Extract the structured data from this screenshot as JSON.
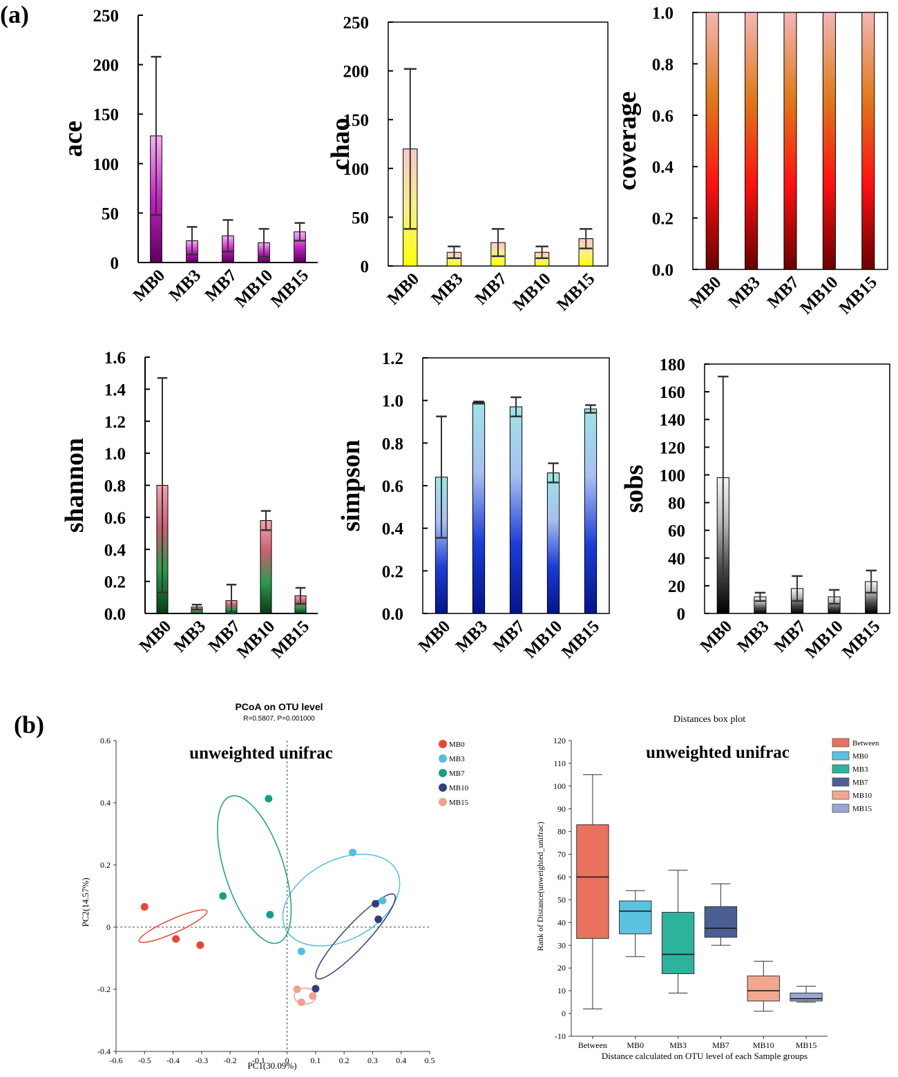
{
  "panel_labels": {
    "a": "(a)",
    "b": "(b)"
  },
  "chart_data": [
    {
      "type": "bar",
      "id": "ace",
      "ylabel": "ace",
      "categories": [
        "MB0",
        "MB3",
        "MB7",
        "MB10",
        "MB15"
      ],
      "values": [
        128,
        22,
        27,
        20,
        31
      ],
      "errors": [
        80,
        14,
        16,
        14,
        9
      ],
      "ylim": [
        0,
        250
      ],
      "yticks": [
        "0",
        "50",
        "100",
        "150",
        "200",
        "250"
      ],
      "gradient": [
        "#f4b3f4",
        "#c420c4",
        "#5a005a"
      ],
      "box": "open"
    },
    {
      "type": "bar",
      "id": "chao",
      "ylabel": "chao",
      "categories": [
        "MB0",
        "MB3",
        "MB7",
        "MB10",
        "MB15"
      ],
      "values": [
        120,
        14,
        24,
        14,
        28
      ],
      "errors": [
        82,
        6,
        14,
        6,
        10
      ],
      "ylim": [
        0,
        250
      ],
      "yticks": [
        "0",
        "50",
        "100",
        "150",
        "200",
        "250"
      ],
      "gradient": [
        "#f9c8c8",
        "#f7f08a",
        "#ffff00"
      ],
      "box": "closed"
    },
    {
      "type": "bar",
      "id": "coverage",
      "ylabel": "coverage",
      "categories": [
        "MB0",
        "MB3",
        "MB7",
        "MB10",
        "MB15"
      ],
      "values": [
        1.0,
        1.0,
        1.0,
        1.0,
        1.0
      ],
      "errors": [
        0,
        0,
        0,
        0,
        0
      ],
      "ylim": [
        0,
        1.0
      ],
      "yticks": [
        "0.0",
        "0.2",
        "0.4",
        "0.6",
        "0.8",
        "1.0"
      ],
      "gradient": [
        "#f4b6b6",
        "#e07a1a",
        "#ff1010",
        "#6a0000"
      ],
      "box": "closed"
    },
    {
      "type": "bar",
      "id": "shannon",
      "ylabel": "shannon",
      "categories": [
        "MB0",
        "MB3",
        "MB7",
        "MB10",
        "MB15"
      ],
      "values": [
        0.8,
        0.04,
        0.08,
        0.58,
        0.11
      ],
      "errors": [
        0.67,
        0.015,
        0.1,
        0.06,
        0.05
      ],
      "ylim": [
        0,
        1.6
      ],
      "yticks": [
        "0.0",
        "0.2",
        "0.4",
        "0.6",
        "0.8",
        "1.0",
        "1.2",
        "1.4",
        "1.6"
      ],
      "gradient": [
        "#f4a3b3",
        "#c86070",
        "#2a9a4a",
        "#0a3a12"
      ],
      "box": "open"
    },
    {
      "type": "bar",
      "id": "simpson",
      "ylabel": "simpson",
      "categories": [
        "MB0",
        "MB3",
        "MB7",
        "MB10",
        "MB15"
      ],
      "values": [
        0.64,
        0.99,
        0.97,
        0.66,
        0.96
      ],
      "errors": [
        0.285,
        0.005,
        0.045,
        0.045,
        0.018
      ],
      "ylim": [
        0,
        1.2
      ],
      "yticks": [
        "0.0",
        "0.2",
        "0.4",
        "0.6",
        "0.8",
        "1.0",
        "1.2"
      ],
      "gradient": [
        "#9de4e4",
        "#a8bff2",
        "#1a3cd8",
        "#04148a"
      ],
      "box": "closed"
    },
    {
      "type": "bar",
      "id": "sobs",
      "ylabel": "sobs",
      "categories": [
        "MB0",
        "MB3",
        "MB7",
        "MB10",
        "MB15"
      ],
      "values": [
        98,
        12,
        18,
        12,
        23
      ],
      "errors": [
        73,
        3,
        9,
        5,
        8
      ],
      "ylim": [
        0,
        180
      ],
      "yticks": [
        "0",
        "20",
        "40",
        "60",
        "80",
        "100",
        "120",
        "140",
        "160",
        "180"
      ],
      "gradient": [
        "#f4f4f4",
        "#b8b8b8",
        "#4a4a4a",
        "#000000"
      ],
      "box": "closed"
    },
    {
      "type": "scatter",
      "id": "pcoa",
      "title": "PCoA on OTU level",
      "subtitle": "R=0.5807, P=0.001000",
      "annotation": "unweighted unifrac",
      "xlabel": "PC1(30.09%)",
      "ylabel": "PC2(14.57%)",
      "xlim": [
        -0.6,
        0.5
      ],
      "ylim": [
        -0.4,
        0.6
      ],
      "xticks": [
        "-0.6",
        "-0.5",
        "-0.4",
        "-0.3",
        "-0.2",
        "-0.1",
        "0",
        "0.1",
        "0.2",
        "0.3",
        "0.4",
        "0.5"
      ],
      "yticks": [
        "-0.4",
        "-0.2",
        "0",
        "0.2",
        "0.4",
        "0.6"
      ],
      "series": [
        {
          "name": "MB0",
          "color": "#e8472f",
          "points": [
            [
              -0.5,
              0.065
            ],
            [
              -0.39,
              -0.038
            ],
            [
              -0.305,
              -0.058
            ]
          ]
        },
        {
          "name": "MB3",
          "color": "#4fc0e0",
          "points": [
            [
              0.23,
              0.24
            ],
            [
              0.335,
              0.085
            ],
            [
              0.05,
              -0.078
            ]
          ]
        },
        {
          "name": "MB7",
          "color": "#16a085",
          "points": [
            [
              -0.065,
              0.413
            ],
            [
              -0.225,
              0.1
            ],
            [
              -0.06,
              0.04
            ]
          ]
        },
        {
          "name": "MB10",
          "color": "#2e3f7c",
          "points": [
            [
              0.31,
              0.075
            ],
            [
              0.32,
              0.025
            ],
            [
              0.1,
              -0.198
            ]
          ]
        },
        {
          "name": "MB15",
          "color": "#f0a090",
          "points": [
            [
              0.035,
              -0.2
            ],
            [
              0.09,
              -0.222
            ],
            [
              0.05,
              -0.242
            ]
          ]
        }
      ],
      "ellipses": [
        {
          "series": "MB0",
          "cx": -0.4,
          "cy": 0.003,
          "rx": 0.13,
          "ry": 0.022,
          "angle": -24
        },
        {
          "series": "MB3",
          "cx": 0.19,
          "cy": 0.087,
          "rx": 0.22,
          "ry": 0.128,
          "angle": -28
        },
        {
          "series": "MB7",
          "cx": -0.115,
          "cy": 0.185,
          "rx": 0.27,
          "ry": 0.095,
          "angle": 72
        },
        {
          "series": "MB10",
          "cx": 0.24,
          "cy": -0.03,
          "rx": 0.2,
          "ry": 0.038,
          "angle": -47
        },
        {
          "series": "MB15",
          "cx": 0.063,
          "cy": -0.222,
          "rx": 0.038,
          "ry": 0.026,
          "angle": 0
        }
      ]
    },
    {
      "type": "box",
      "id": "distance-box",
      "title": "Distances box plot",
      "annotation": "unweighted unifrac",
      "xlabel": "Distance calculated on OTU level of each Sample groups",
      "ylabel": "Rank of Distance(unweighted_unifrac)",
      "ylim": [
        -10,
        120
      ],
      "yticks": [
        "-10",
        "0",
        "10",
        "20",
        "30",
        "40",
        "50",
        "60",
        "70",
        "80",
        "90",
        "100",
        "110",
        "120"
      ],
      "categories": [
        "Between",
        "MB0",
        "MB3",
        "MB7",
        "MB10",
        "MB15"
      ],
      "colors": [
        "#e8725e",
        "#5bc2e0",
        "#2bb39b",
        "#4a5f96",
        "#f2a88e",
        "#9aa6d2"
      ],
      "boxes": [
        {
          "min": 2,
          "q1": 33,
          "median": 60,
          "q3": 83,
          "max": 105
        },
        {
          "min": 25,
          "q1": 35,
          "median": 45,
          "q3": 49.5,
          "max": 54
        },
        {
          "min": 9,
          "q1": 17.5,
          "median": 26,
          "q3": 44.5,
          "max": 63
        },
        {
          "min": 30,
          "q1": 33.5,
          "median": 37.5,
          "q3": 47,
          "max": 57
        },
        {
          "min": 1,
          "q1": 5.5,
          "median": 10,
          "q3": 16.5,
          "max": 23
        },
        {
          "min": 5,
          "q1": 5.5,
          "median": 6.5,
          "q3": 9,
          "max": 12
        }
      ]
    }
  ]
}
